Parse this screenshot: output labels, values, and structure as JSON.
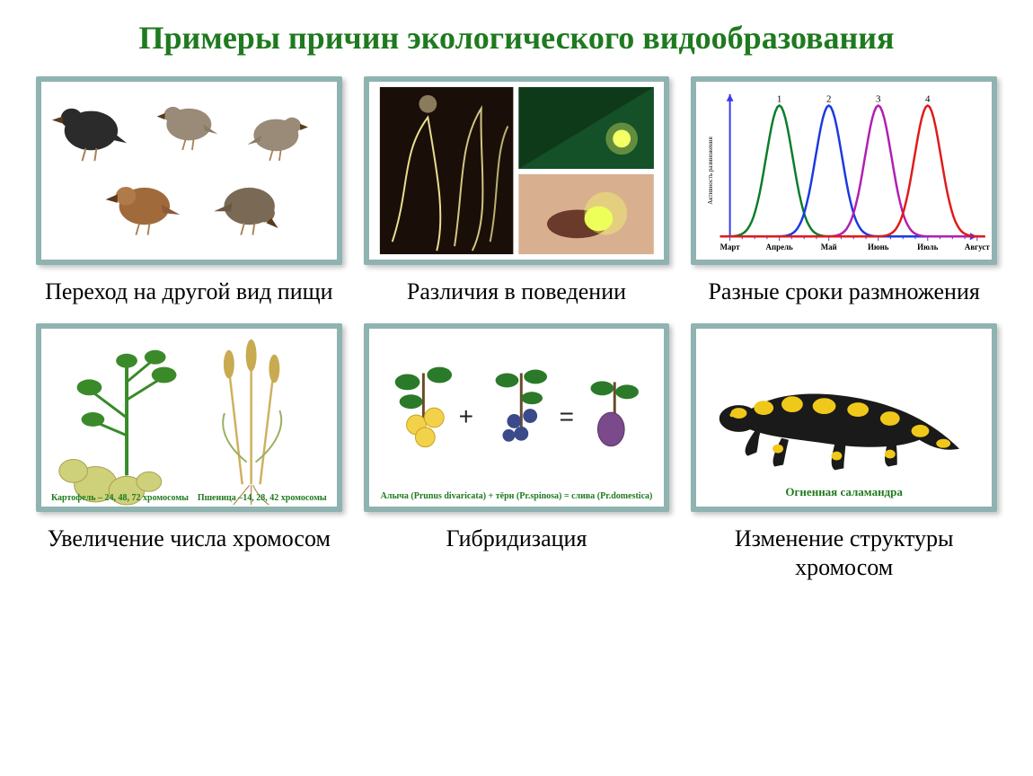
{
  "title": "Примеры  причин экологического видообразования",
  "title_color": "#1f7a1f",
  "title_fontsize": 36,
  "frame_border_color": "#8fb3b0",
  "caption_fontsize": 26,
  "caption_color": "#000000",
  "cells": [
    {
      "caption": "Переход на другой вид пищи"
    },
    {
      "caption": "Различия в поведении"
    },
    {
      "caption": "Разные сроки размножения"
    },
    {
      "caption": "Увеличение числа хромосом"
    },
    {
      "caption": "Гибридизация"
    },
    {
      "caption": "Изменение структуры хромосом"
    }
  ],
  "birds": {
    "colors": [
      "#2b2b2b",
      "#9a8a78",
      "#a06a3a",
      "#6b584a",
      "#7a6a55"
    ],
    "beak_color": "#5a3a1a",
    "leg_color": "#a88050"
  },
  "fireflies": {
    "panel_bg": [
      "#1a0e08",
      "#0e3a1a",
      "#3a241a"
    ],
    "glow_color": "#f5ff66",
    "trail_color": "#fff6a0"
  },
  "chart": {
    "type": "line",
    "months": [
      "Март",
      "Апрель",
      "Май",
      "Июнь",
      "Июль",
      "Август"
    ],
    "month_fontsize": 9,
    "series": [
      {
        "label": "1",
        "peak_month_index": 1,
        "peak_y": 0.92,
        "color": "#0a7d2a"
      },
      {
        "label": "2",
        "peak_month_index": 2,
        "peak_y": 0.92,
        "color": "#1a3adf"
      },
      {
        "label": "3",
        "peak_month_index": 3,
        "peak_y": 0.92,
        "color": "#b01fb0"
      },
      {
        "label": "4",
        "peak_month_index": 4,
        "peak_y": 0.92,
        "color": "#e01a1a"
      }
    ],
    "axis_color": "#3a3aee",
    "y_axis_label": "Активность размножения",
    "y_axis_fontsize": 7,
    "xlim": [
      0,
      5
    ],
    "ylim": [
      0,
      1
    ],
    "sigma": 0.38
  },
  "polyploidy": {
    "potato_label": "Картофель – 24, 48, 72 хромосомы",
    "wheat_label": "Пшеница –14, 28, 42 хромосомы",
    "label_color": "#1f7a1f",
    "label_fontsize": 10,
    "potato_green": "#3a8a2a",
    "tuber_color": "#cfd07a",
    "wheat_stem": "#d0b060",
    "wheat_head": "#c8aa50",
    "root_color": "#b08a50"
  },
  "hybridization": {
    "formula_plus": "+",
    "formula_eq": "=",
    "caption": "Алыча (Prunus divaricata) + тёрн (Pr.spinosa) = слива (Pr.domestica)",
    "caption_color": "#1f7a1f",
    "caption_fontsize": 10,
    "fruit_colors": {
      "alycha": "#f2d24a",
      "tern": "#3a4a8a",
      "plum": "#7a4a8a"
    },
    "leaf_color": "#2a7a2a",
    "stem_color": "#6a4a2a"
  },
  "salamander": {
    "name": "Огненная саламандра",
    "name_color": "#1f7a1f",
    "name_fontsize": 13,
    "body_color": "#1a1a1a",
    "spot_color": "#f0c81a"
  }
}
